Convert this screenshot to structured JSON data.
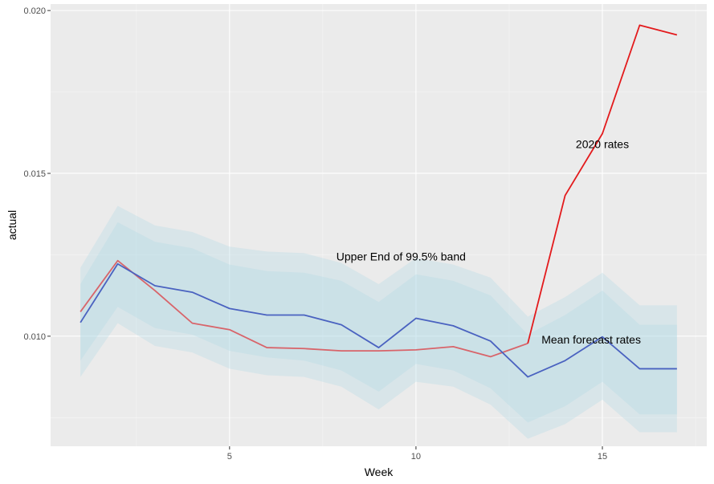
{
  "chart_data": {
    "type": "line",
    "xlabel": "Week",
    "ylabel": "actual",
    "xlim": [
      0.2,
      17.8
    ],
    "ylim": [
      0.00662,
      0.0202
    ],
    "x_ticks": [
      5,
      10,
      15
    ],
    "x_tick_labels": [
      "5",
      "10",
      "15"
    ],
    "y_ticks": [
      0.01,
      0.015,
      0.02
    ],
    "y_tick_labels": [
      "0.010",
      "0.015",
      "0.020"
    ],
    "grid": true,
    "x": [
      1,
      2,
      3,
      4,
      5,
      6,
      7,
      8,
      9,
      10,
      11,
      12,
      13,
      14,
      15,
      16,
      17
    ],
    "series": [
      {
        "values": [
          0.01075,
          0.01232,
          0.0114,
          0.0104,
          0.0102,
          0.00965,
          0.00962,
          0.00955,
          0.00955,
          0.00958,
          0.00968,
          0.00937,
          0.00978,
          0.01432,
          0.01622,
          0.01955,
          0.01925
        ],
        "segments": [
          {
            "from_index": 0,
            "to_index": 12,
            "color": "#d8646a"
          },
          {
            "from_index": 12,
            "to_index": 16,
            "color": "#e31a1c"
          }
        ]
      },
      {
        "values": [
          0.01042,
          0.01222,
          0.01155,
          0.01135,
          0.01085,
          0.01065,
          0.01065,
          0.01035,
          0.00965,
          0.01055,
          0.01032,
          0.00985,
          0.00875,
          0.00925,
          0.00998,
          0.009,
          0.009
        ],
        "color": "#4a62c0"
      }
    ],
    "bands": [
      {
        "lower": [
          0.00875,
          0.0104,
          0.0097,
          0.0095,
          0.009,
          0.0088,
          0.00875,
          0.00845,
          0.00775,
          0.0086,
          0.00845,
          0.0079,
          0.00685,
          0.0073,
          0.00805,
          0.00705,
          0.00705
        ],
        "upper": [
          0.0121,
          0.014,
          0.0134,
          0.0132,
          0.01275,
          0.0126,
          0.01255,
          0.01225,
          0.0116,
          0.0124,
          0.0122,
          0.0118,
          0.0106,
          0.0112,
          0.01195,
          0.01095,
          0.01095
        ],
        "color": "#add8e6",
        "opacity": 0.3
      },
      {
        "lower": [
          0.00925,
          0.0109,
          0.01025,
          0.01005,
          0.00955,
          0.00935,
          0.00925,
          0.00895,
          0.0083,
          0.00915,
          0.00895,
          0.0084,
          0.00735,
          0.00785,
          0.0086,
          0.0076,
          0.0076
        ],
        "upper": [
          0.0116,
          0.0135,
          0.0129,
          0.0127,
          0.0122,
          0.012,
          0.01195,
          0.0117,
          0.01105,
          0.0119,
          0.0117,
          0.01125,
          0.01005,
          0.01065,
          0.0114,
          0.01035,
          0.01035
        ],
        "color": "#add8e6",
        "opacity": 0.3
      }
    ],
    "annotations": [
      {
        "text": "2020 rates",
        "x": 15.0,
        "y": 0.0159
      },
      {
        "text": "Upper End of 99.5% band",
        "x": 9.6,
        "y": 0.01245
      },
      {
        "text": "Mean forecast rates",
        "x": 14.7,
        "y": 0.0099
      }
    ],
    "colors": {
      "panel_background": "#ebebeb",
      "grid_major": "#ffffff",
      "grid_minor": "#f5f5f5",
      "tick_mark": "#333333"
    }
  }
}
